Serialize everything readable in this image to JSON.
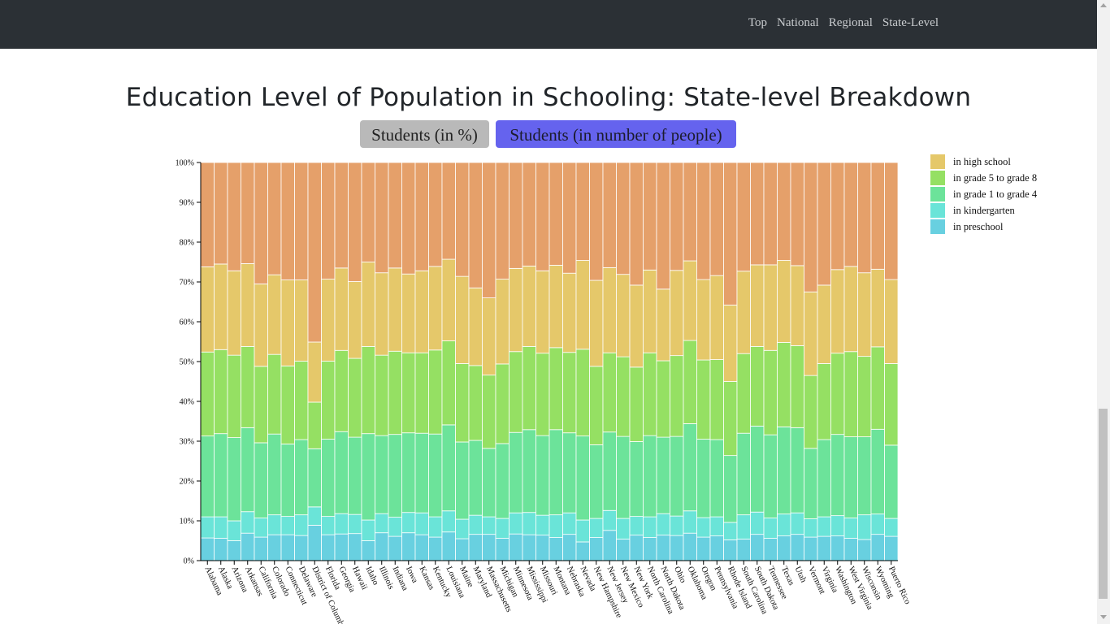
{
  "nav": {
    "links": [
      "Top",
      "National",
      "Regional",
      "State-Level"
    ]
  },
  "page_title": "Education Level of Population in Schooling: State-level Breakdown",
  "toggle": {
    "percent_label": "Students (in %)",
    "number_label": "Students (in number of people)"
  },
  "colors": {
    "in preschool": "#68d0e0",
    "in kindergarten": "#6ae4d8",
    "in grade 1 to grade 4": "#6ce39a",
    "in grade 5 to grade 8": "#95e063",
    "in high school": "#e5c86a",
    "rest": "#e5a06a"
  },
  "chart_data": {
    "type": "bar",
    "stacked": true,
    "title": "",
    "xlabel": "",
    "ylabel": "",
    "ylim": [
      0,
      100
    ],
    "yticks": [
      "0%",
      "10%",
      "20%",
      "30%",
      "40%",
      "50%",
      "60%",
      "70%",
      "80%",
      "90%",
      "100%"
    ],
    "legend_position": "right",
    "legend": [
      "in high school",
      "in grade 5 to grade 8",
      "in grade 1 to grade 4",
      "in kindergarten",
      "in preschool"
    ],
    "categories": [
      "Alabama",
      "Alaska",
      "Arizona",
      "Arkansas",
      "California",
      "Colorado",
      "Connecticut",
      "Delaware",
      "District of Columbia",
      "Florida",
      "Georgia",
      "Hawaii",
      "Idaho",
      "Illinois",
      "Indiana",
      "Iowa",
      "Kansas",
      "Kentucky",
      "Louisiana",
      "Maine",
      "Maryland",
      "Massachusetts",
      "Michigan",
      "Minnesota",
      "Mississippi",
      "Missouri",
      "Montana",
      "Nebraska",
      "Nevada",
      "New Hampshire",
      "New Jersey",
      "New Mexico",
      "New York",
      "North Carolina",
      "North Dakota",
      "Ohio",
      "Oklahoma",
      "Oregon",
      "Pennsylvania",
      "Rhode Island",
      "South Carolina",
      "South Dakota",
      "Tennessee",
      "Texas",
      "Utah",
      "Vermont",
      "Virginia",
      "Washington",
      "West Virginia",
      "Wisconsin",
      "Wyoming",
      "Puerto Rico"
    ],
    "series": [
      {
        "name": "in preschool",
        "values": [
          5.7,
          5.6,
          5.0,
          6.9,
          5.9,
          6.5,
          6.5,
          6.3,
          8.9,
          6.5,
          6.7,
          6.8,
          5.0,
          7.0,
          6.1,
          7.0,
          6.5,
          5.9,
          7.2,
          5.5,
          6.6,
          6.6,
          5.6,
          6.7,
          6.5,
          6.4,
          5.8,
          6.6,
          4.7,
          5.8,
          7.6,
          5.4,
          6.4,
          5.8,
          6.4,
          6.3,
          6.9,
          5.9,
          6.2,
          5.2,
          5.4,
          6.6,
          5.6,
          6.2,
          6.6,
          5.9,
          6.1,
          6.2,
          5.6,
          5.3,
          6.6,
          6.1
        ]
      },
      {
        "name": "in kindergarten",
        "values": [
          5.3,
          5.4,
          5.0,
          5.4,
          4.8,
          5.0,
          4.6,
          5.2,
          4.6,
          4.6,
          5.1,
          4.8,
          5.2,
          4.8,
          4.8,
          5.1,
          5.5,
          5.1,
          5.3,
          4.9,
          4.8,
          4.4,
          5.0,
          5.3,
          5.6,
          5.0,
          5.7,
          5.4,
          5.5,
          4.8,
          5.0,
          5.2,
          4.7,
          5.2,
          5.4,
          4.9,
          5.6,
          4.9,
          4.8,
          4.4,
          6.1,
          5.6,
          5.1,
          5.5,
          5.4,
          4.6,
          4.9,
          5.1,
          5.1,
          6.2,
          5.1,
          4.5
        ]
      },
      {
        "name": "in grade 1 to grade 4",
        "values": [
          20.3,
          20.9,
          20.9,
          21.1,
          18.9,
          20.3,
          18.2,
          18.9,
          14.6,
          19.4,
          20.6,
          19.4,
          21.7,
          19.6,
          20.8,
          20.0,
          20.0,
          20.8,
          21.6,
          19.4,
          18.8,
          17.2,
          18.8,
          20.2,
          20.8,
          20.0,
          21.4,
          20.1,
          21.1,
          18.5,
          19.7,
          20.6,
          18.8,
          20.4,
          19.2,
          20.0,
          21.9,
          19.7,
          19.4,
          16.8,
          20.5,
          21.6,
          20.9,
          21.9,
          21.4,
          17.7,
          19.4,
          20.4,
          20.4,
          19.6,
          21.3,
          18.4
        ]
      },
      {
        "name": "in grade 5 to grade 8",
        "values": [
          21.1,
          21.1,
          20.7,
          20.4,
          19.2,
          20.0,
          19.6,
          19.7,
          11.7,
          19.6,
          20.4,
          19.8,
          21.9,
          20.2,
          20.9,
          20.1,
          20.2,
          21.1,
          21.1,
          19.7,
          18.8,
          18.4,
          20.0,
          20.3,
          20.9,
          20.7,
          20.6,
          20.2,
          21.8,
          19.7,
          19.9,
          20.0,
          18.7,
          20.8,
          19.2,
          20.3,
          20.9,
          19.9,
          20.1,
          18.6,
          20.0,
          20.0,
          21.2,
          21.2,
          20.6,
          18.3,
          19.1,
          20.4,
          21.4,
          20.2,
          20.7,
          20.5
        ]
      },
      {
        "name": "in high school",
        "values": [
          21.4,
          21.5,
          21.2,
          20.8,
          20.7,
          20.0,
          21.6,
          20.4,
          15.1,
          20.6,
          20.7,
          19.3,
          21.2,
          20.7,
          20.9,
          19.8,
          20.6,
          21.0,
          20.5,
          21.9,
          19.5,
          19.4,
          21.3,
          20.9,
          20.2,
          20.7,
          20.7,
          19.9,
          22.3,
          21.6,
          21.4,
          20.7,
          20.6,
          20.8,
          18.0,
          21.4,
          20.0,
          20.2,
          21.1,
          19.2,
          20.7,
          20.5,
          21.5,
          20.6,
          20.1,
          21.0,
          19.7,
          21.0,
          21.4,
          21.0,
          19.5,
          21.1
        ]
      }
    ]
  }
}
